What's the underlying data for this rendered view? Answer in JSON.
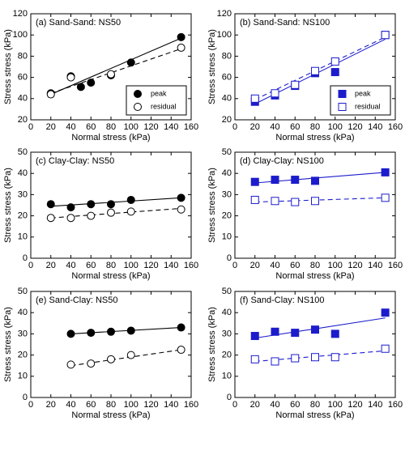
{
  "chart_data": [
    {
      "type": "scatter",
      "title": "(a) Sand-Sand: NS50",
      "xlabel": "Normal stress (kPa)",
      "ylabel": "Stress stress (kPa)",
      "xlim": [
        0,
        160
      ],
      "xticks": [
        0,
        20,
        40,
        60,
        80,
        100,
        120,
        140,
        160
      ],
      "ylim": [
        20,
        120
      ],
      "yticks": [
        20,
        40,
        60,
        80,
        100,
        120
      ],
      "legend": "lower right",
      "marker": "circle",
      "series": [
        {
          "name": "peak",
          "color": "#000000",
          "filled": true,
          "x": [
            20,
            40,
            50,
            60,
            80,
            100,
            150
          ],
          "values": [
            45,
            61,
            51,
            55,
            62,
            74,
            98
          ],
          "fit": {
            "x": [
              20,
              150
            ],
            "y": [
              44,
              97
            ],
            "dash": false
          }
        },
        {
          "name": "residual",
          "color": "#000000",
          "filled": false,
          "x": [
            20,
            40,
            80,
            150
          ],
          "values": [
            44,
            60,
            63,
            88
          ],
          "fit": {
            "x": [
              20,
              150
            ],
            "y": [
              45,
              87
            ],
            "dash": true
          }
        }
      ]
    },
    {
      "type": "scatter",
      "title": "(b) Sand-Sand: NS100",
      "xlabel": "Normal stress (kPa)",
      "ylabel": "Stress stress (kPa)",
      "xlim": [
        0,
        160
      ],
      "xticks": [
        0,
        20,
        40,
        60,
        80,
        100,
        120,
        140,
        160
      ],
      "ylim": [
        20,
        120
      ],
      "yticks": [
        20,
        40,
        60,
        80,
        100,
        120
      ],
      "legend": "lower right",
      "marker": "square",
      "series": [
        {
          "name": "peak",
          "color": "#1c1ccc",
          "filled": true,
          "x": [
            20,
            40,
            60,
            80,
            100,
            150
          ],
          "values": [
            37,
            43,
            52,
            64,
            65,
            100
          ],
          "fit": {
            "x": [
              20,
              150
            ],
            "y": [
              35,
              96
            ],
            "dash": false
          }
        },
        {
          "name": "residual",
          "color": "#1c1ccc",
          "filled": false,
          "x": [
            20,
            40,
            60,
            80,
            100,
            150
          ],
          "values": [
            40,
            45,
            53,
            66,
            75,
            100
          ],
          "fit": {
            "x": [
              20,
              150
            ],
            "y": [
              39,
              98
            ],
            "dash": true
          }
        }
      ]
    },
    {
      "type": "scatter",
      "title": "(c) Clay-Clay: NS50",
      "xlabel": "Normal stress (kPa)",
      "ylabel": "Stress stress (kPa)",
      "xlim": [
        0,
        160
      ],
      "xticks": [
        0,
        20,
        40,
        60,
        80,
        100,
        120,
        140,
        160
      ],
      "ylim": [
        0,
        50
      ],
      "yticks": [
        0,
        10,
        20,
        30,
        40,
        50
      ],
      "marker": "circle",
      "series": [
        {
          "name": "peak",
          "color": "#000000",
          "filled": true,
          "x": [
            20,
            40,
            60,
            80,
            100,
            150
          ],
          "values": [
            25.5,
            24,
            25.5,
            25.5,
            27.5,
            28.5
          ],
          "fit": {
            "x": [
              20,
              150
            ],
            "y": [
              24.5,
              28.5
            ],
            "dash": false
          }
        },
        {
          "name": "residual",
          "color": "#000000",
          "filled": false,
          "x": [
            20,
            40,
            60,
            80,
            100,
            150
          ],
          "values": [
            19,
            19,
            20,
            21.5,
            22,
            23
          ],
          "fit": {
            "x": [
              20,
              150
            ],
            "y": [
              19,
              23.5
            ],
            "dash": true
          }
        }
      ]
    },
    {
      "type": "scatter",
      "title": "(d) Clay-Clay: NS100",
      "xlabel": "Normal stress (kPa)",
      "ylabel": "Stress stress (kPa)",
      "xlim": [
        0,
        160
      ],
      "xticks": [
        0,
        20,
        40,
        60,
        80,
        100,
        120,
        140,
        160
      ],
      "ylim": [
        0,
        50
      ],
      "yticks": [
        0,
        10,
        20,
        30,
        40,
        50
      ],
      "marker": "square",
      "series": [
        {
          "name": "peak",
          "color": "#1c1ccc",
          "filled": true,
          "x": [
            20,
            40,
            60,
            80,
            150
          ],
          "values": [
            36,
            37,
            37,
            36.5,
            40.5
          ],
          "fit": {
            "x": [
              20,
              150
            ],
            "y": [
              35.5,
              40.5
            ],
            "dash": false
          }
        },
        {
          "name": "residual",
          "color": "#1c1ccc",
          "filled": false,
          "x": [
            20,
            40,
            60,
            80,
            150
          ],
          "values": [
            27.5,
            27,
            26.5,
            27,
            28.5
          ],
          "fit": {
            "x": [
              20,
              150
            ],
            "y": [
              26.5,
              28.5
            ],
            "dash": true
          }
        }
      ]
    },
    {
      "type": "scatter",
      "title": "(e) Sand-Clay: NS50",
      "xlabel": "Normal stress (kPa)",
      "ylabel": "Stress stress (kPa)",
      "xlim": [
        0,
        160
      ],
      "xticks": [
        0,
        20,
        40,
        60,
        80,
        100,
        120,
        140,
        160
      ],
      "ylim": [
        0,
        50
      ],
      "yticks": [
        0,
        10,
        20,
        30,
        40,
        50
      ],
      "marker": "circle",
      "series": [
        {
          "name": "peak",
          "color": "#000000",
          "filled": true,
          "x": [
            40,
            60,
            80,
            100,
            150
          ],
          "values": [
            30,
            30.5,
            31,
            31.5,
            33
          ],
          "fit": {
            "x": [
              40,
              150
            ],
            "y": [
              30,
              33
            ],
            "dash": false
          }
        },
        {
          "name": "residual",
          "color": "#000000",
          "filled": false,
          "x": [
            40,
            60,
            80,
            100,
            150
          ],
          "values": [
            15.5,
            16,
            18,
            20,
            22.5
          ],
          "fit": {
            "x": [
              40,
              150
            ],
            "y": [
              15,
              22.5
            ],
            "dash": true
          }
        }
      ]
    },
    {
      "type": "scatter",
      "title": "(f) Sand-Clay: NS100",
      "xlabel": "Normal stress (kPa)",
      "ylabel": "Stress stress (kPa)",
      "xlim": [
        0,
        160
      ],
      "xticks": [
        0,
        20,
        40,
        60,
        80,
        100,
        120,
        140,
        160
      ],
      "ylim": [
        0,
        50
      ],
      "yticks": [
        0,
        10,
        20,
        30,
        40,
        50
      ],
      "marker": "square",
      "series": [
        {
          "name": "peak",
          "color": "#1c1ccc",
          "filled": true,
          "x": [
            20,
            40,
            60,
            80,
            100,
            150
          ],
          "values": [
            29,
            31,
            30.5,
            32,
            30,
            40
          ],
          "fit": {
            "x": [
              20,
              150
            ],
            "y": [
              28,
              37.5
            ],
            "dash": false
          }
        },
        {
          "name": "residual",
          "color": "#1c1ccc",
          "filled": false,
          "x": [
            20,
            40,
            60,
            80,
            100,
            150
          ],
          "values": [
            18,
            17,
            18.5,
            19,
            19,
            23
          ],
          "fit": {
            "x": [
              20,
              150
            ],
            "y": [
              17,
              22
            ],
            "dash": true
          }
        }
      ]
    }
  ]
}
